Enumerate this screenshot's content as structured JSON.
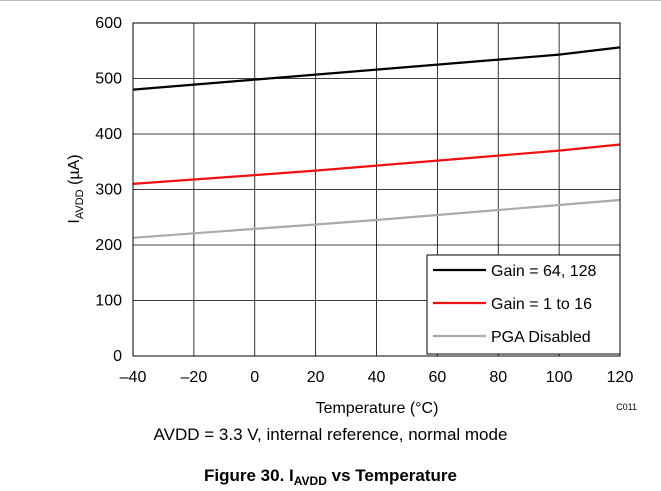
{
  "chart_data": {
    "type": "line",
    "xlabel": "Temperature (°C)",
    "ylabel_main": "I",
    "ylabel_sub": "AVDD",
    "ylabel_unit": " (µA)",
    "xlim": [
      -40,
      120
    ],
    "ylim": [
      0,
      600
    ],
    "x_ticks": [
      -40,
      -20,
      0,
      20,
      40,
      60,
      80,
      100,
      120
    ],
    "x_tick_labels": [
      "–40",
      "–20",
      "0",
      "20",
      "40",
      "60",
      "80",
      "100",
      "120"
    ],
    "y_ticks": [
      0,
      100,
      200,
      300,
      400,
      500,
      600
    ],
    "y_tick_labels": [
      "0",
      "100",
      "200",
      "300",
      "400",
      "500",
      "600"
    ],
    "grid": true,
    "legend_position": "bottom-right",
    "series": [
      {
        "name": "Gain = 64, 128",
        "color": "#000000",
        "x": [
          -40,
          -20,
          0,
          20,
          40,
          60,
          80,
          100,
          120
        ],
        "y": [
          480,
          489,
          498,
          507,
          516,
          525,
          534,
          543,
          556
        ]
      },
      {
        "name": "Gain = 1 to 16",
        "color": "#ee1111",
        "x": [
          -40,
          -20,
          0,
          20,
          40,
          60,
          80,
          100,
          120
        ],
        "y": [
          310,
          318,
          326,
          334,
          343,
          352,
          361,
          370,
          381
        ]
      },
      {
        "name": "PGA Disabled",
        "color": "#aaaaaa",
        "x": [
          -40,
          -20,
          0,
          20,
          40,
          60,
          80,
          100,
          120
        ],
        "y": [
          213,
          221,
          229,
          237,
          245,
          254,
          263,
          272,
          281
        ]
      }
    ],
    "code": "C011"
  },
  "note": "AVDD = 3.3 V, internal reference, normal mode",
  "caption": {
    "prefix": "Figure 30. I",
    "sub": "AVDD",
    "suffix": " vs Temperature"
  }
}
